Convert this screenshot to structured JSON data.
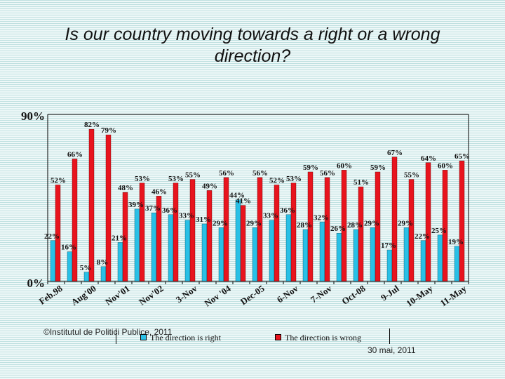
{
  "title": "Is our country moving towards a right or a wrong direction?",
  "footer": {
    "copyright": "©Institutul de Politici Publice, 2011",
    "date": "30 mai, 2011"
  },
  "colors": {
    "right": "#29c0e6",
    "wrong": "#e8141e"
  },
  "chart_data": {
    "type": "bar",
    "categories": [
      "Feb.98",
      "",
      "Aug'00",
      "",
      "Nov'01",
      "",
      "Nov'02",
      "",
      "3-Nov",
      "",
      "Nov '04",
      "",
      "Dec-05",
      "",
      "6-Nov",
      "",
      "7-Nov",
      "",
      "Oct-08",
      "",
      "9-Jul",
      "",
      "10-May",
      "",
      "11-May"
    ],
    "x_tick_labels": [
      "Feb.98",
      "Aug'00",
      "Nov'01",
      "Nov'02",
      "3-Nov",
      "Nov '04",
      "Dec-05",
      "6-Nov",
      "7-Nov",
      "Oct-08",
      "9-Jul",
      "10-May",
      "11-May"
    ],
    "series": [
      {
        "name": "The direction is right",
        "values": [
          22,
          16,
          5,
          8,
          21,
          39,
          37,
          36,
          33,
          31,
          29,
          44,
          29,
          33,
          36,
          28,
          32,
          26,
          28,
          29,
          17,
          29,
          22,
          25,
          19
        ]
      },
      {
        "name": "The direction is wrong",
        "values": [
          52,
          66,
          82,
          79,
          48,
          53,
          46,
          53,
          55,
          49,
          56,
          41,
          56,
          52,
          53,
          59,
          56,
          60,
          51,
          59,
          67,
          55,
          64,
          60,
          65
        ]
      }
    ],
    "y_tick_labels": [
      "90%",
      "0%"
    ],
    "ylim": [
      0,
      90
    ],
    "legend": "bottom",
    "grid": false
  }
}
